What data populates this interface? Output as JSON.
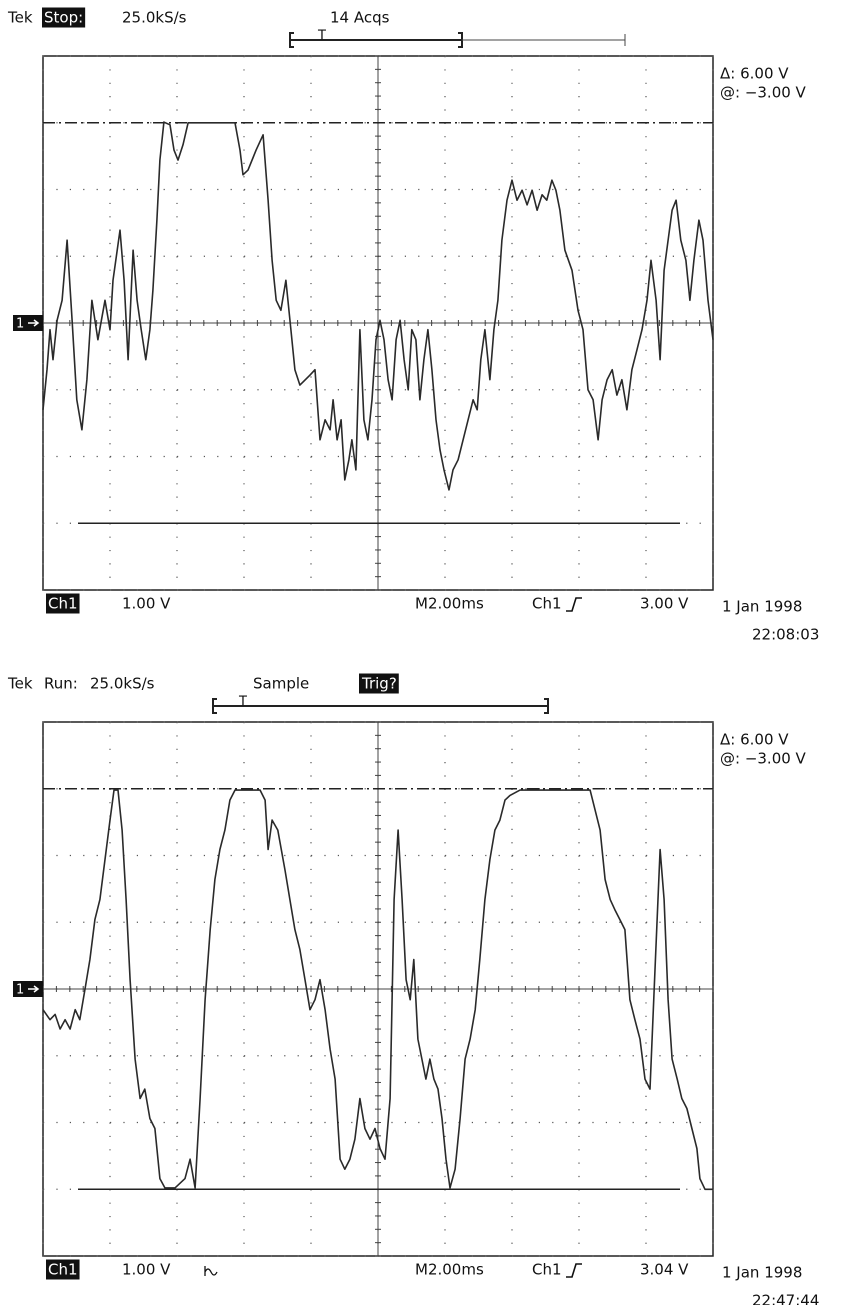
{
  "chart_data": [
    {
      "type": "line",
      "brand": "Tek",
      "status": "Stop:",
      "sample_rate": "25.0kS/s",
      "acquisition": "14 Acqs",
      "trigger_marker": "T",
      "channel_marker": "1",
      "cursor_delta": "Δ: 6.00 V",
      "cursor_position": "@: −3.00 V",
      "channel": "Ch1",
      "volts_per_div": "1.00 V",
      "timebase": "M2.00ms",
      "trigger_source": "Ch1",
      "trigger_level": "3.00 V",
      "date": "1 Jan 1998",
      "time": "22:08:03",
      "xlim": [
        0,
        20
      ],
      "ylim": [
        -4,
        4
      ],
      "xticks": [
        0,
        2,
        4,
        6,
        8,
        10,
        12,
        14,
        16,
        18,
        20
      ],
      "yticks": [
        -4,
        -3,
        -2,
        -1,
        0,
        1,
        2,
        3,
        4
      ],
      "grid": true,
      "cursors": [
        {
          "value": 3,
          "style": "dashed"
        },
        {
          "value": -3,
          "style": "solid"
        }
      ],
      "x": [
        0,
        0.12,
        0.21,
        0.3,
        0.42,
        0.57,
        0.72,
        0.87,
        1.01,
        1.16,
        1.31,
        1.46,
        1.64,
        1.85,
        2.0,
        2.09,
        2.3,
        2.42,
        2.54,
        2.69,
        2.81,
        2.93,
        3.07,
        3.19,
        3.28,
        3.4,
        3.49,
        3.61,
        3.79,
        3.91,
        4.03,
        4.18,
        4.33,
        5.73,
        5.88,
        5.97,
        6.12,
        6.36,
        6.57,
        6.72,
        6.84,
        6.96,
        7.1,
        7.25,
        7.4,
        7.52,
        7.67,
        7.97,
        8.12,
        8.27,
        8.42,
        8.57,
        8.66,
        8.78,
        8.9,
        9.01,
        9.13,
        9.22,
        9.34,
        9.46,
        9.58,
        9.7,
        9.82,
        9.94,
        10.06,
        10.18,
        10.3,
        10.42,
        10.54,
        10.66,
        10.78,
        10.9,
        11.01,
        11.13,
        11.25,
        11.37,
        11.49,
        11.61,
        11.73,
        11.85,
        11.97,
        12.12,
        12.24,
        12.39,
        12.54,
        12.69,
        12.84,
        12.96,
        13.07,
        13.19,
        13.34,
        13.46,
        13.58,
        13.7,
        13.85,
        14.0,
        14.15,
        14.3,
        14.45,
        14.6,
        14.75,
        14.9,
        15.04,
        15.19,
        15.31,
        15.43,
        15.58,
        15.79,
        15.97,
        16.12,
        16.27,
        16.42,
        16.57,
        16.69,
        16.84,
        16.99,
        17.13,
        17.28,
        17.43,
        17.58,
        17.73,
        17.88,
        18.03,
        18.15,
        18.3,
        18.42,
        18.54,
        18.66,
        18.78,
        18.9,
        19.04,
        19.19,
        19.31,
        19.43,
        19.58,
        19.7,
        19.85,
        20.0
      ],
      "series": [
        {
          "color": "#2a2a2a",
          "values": [
            -1.3,
            -0.7,
            -0.1,
            -0.55,
            0.04,
            0.34,
            1.24,
            0.04,
            -1.15,
            -1.6,
            -0.85,
            0.34,
            -0.25,
            0.34,
            -0.1,
            0.64,
            1.39,
            0.64,
            -0.55,
            1.09,
            0.34,
            -0.1,
            -0.55,
            -0.1,
            0.49,
            1.54,
            2.44,
            3.01,
            2.97,
            2.59,
            2.44,
            2.67,
            3.0,
            3.0,
            2.59,
            2.22,
            2.29,
            2.59,
            2.82,
            1.84,
            0.94,
            0.34,
            0.19,
            0.64,
            -0.1,
            -0.7,
            -0.93,
            -0.78,
            -0.7,
            -1.75,
            -1.45,
            -1.6,
            -1.15,
            -1.75,
            -1.45,
            -2.35,
            -2.05,
            -1.75,
            -2.2,
            -0.1,
            -1.45,
            -1.75,
            -1.15,
            -0.25,
            0.04,
            -0.25,
            -0.85,
            -1.15,
            -0.25,
            0.04,
            -0.55,
            -1.0,
            -0.1,
            -0.25,
            -1.15,
            -0.55,
            -0.1,
            -0.7,
            -1.45,
            -1.9,
            -2.2,
            -2.5,
            -2.2,
            -2.05,
            -1.75,
            -1.45,
            -1.15,
            -1.3,
            -0.55,
            -0.1,
            -0.85,
            -0.1,
            0.34,
            1.24,
            1.84,
            2.14,
            1.84,
            1.99,
            1.77,
            1.99,
            1.69,
            1.92,
            1.84,
            2.14,
            1.99,
            1.69,
            1.09,
            0.79,
            0.19,
            -0.1,
            -1.0,
            -1.15,
            -1.75,
            -1.15,
            -0.85,
            -0.7,
            -1.08,
            -0.85,
            -1.3,
            -0.7,
            -0.4,
            -0.1,
            0.34,
            0.94,
            0.34,
            -0.55,
            0.79,
            1.24,
            1.69,
            1.84,
            1.24,
            0.94,
            0.34,
            0.94,
            1.54,
            1.24,
            0.34,
            -0.25
          ]
        }
      ]
    },
    {
      "type": "line",
      "brand": "Tek",
      "status": "Run:",
      "sample_rate": "25.0kS/s",
      "acquisition": "Sample",
      "trigger_status": "Trig?",
      "trigger_marker": "T",
      "channel_marker": "1",
      "cursor_delta": "Δ: 6.00 V",
      "cursor_position": "@: −3.00 V",
      "channel": "Ch1",
      "volts_per_div": "1.00 V",
      "timebase": "M2.00ms",
      "trigger_source": "Ch1",
      "trigger_level": "3.04 V",
      "date": "1 Jan 1998",
      "time": "22:47:44",
      "xlim": [
        0,
        20
      ],
      "ylim": [
        -4,
        4
      ],
      "xticks": [
        0,
        2,
        4,
        6,
        8,
        10,
        12,
        14,
        16,
        18,
        20
      ],
      "yticks": [
        -4,
        -3,
        -2,
        -1,
        0,
        1,
        2,
        3,
        4
      ],
      "grid": true,
      "cursors": [
        {
          "value": 3,
          "style": "dashed"
        },
        {
          "value": -3,
          "style": "solid"
        }
      ],
      "x": [
        0,
        0.21,
        0.36,
        0.51,
        0.66,
        0.81,
        0.96,
        1.1,
        1.25,
        1.4,
        1.55,
        1.7,
        1.85,
        2.0,
        2.12,
        2.24,
        2.36,
        2.48,
        2.6,
        2.75,
        2.9,
        3.04,
        3.19,
        3.34,
        3.49,
        3.64,
        3.94,
        4.24,
        4.39,
        4.54,
        4.69,
        4.84,
        4.99,
        5.13,
        5.28,
        5.43,
        5.58,
        5.73,
        6.48,
        6.63,
        6.72,
        6.84,
        7.01,
        7.22,
        7.37,
        7.52,
        7.67,
        7.82,
        7.97,
        8.12,
        8.27,
        8.42,
        8.57,
        8.72,
        8.87,
        9.01,
        9.16,
        9.31,
        9.46,
        9.61,
        9.76,
        9.91,
        10.06,
        10.21,
        10.36,
        10.48,
        10.6,
        10.72,
        10.84,
        10.96,
        11.07,
        11.19,
        11.31,
        11.43,
        11.55,
        11.67,
        11.79,
        11.91,
        12.03,
        12.15,
        12.3,
        12.45,
        12.6,
        12.75,
        12.9,
        13.04,
        13.19,
        13.34,
        13.49,
        13.64,
        13.79,
        13.94,
        14.24,
        16.33,
        16.63,
        16.78,
        16.93,
        17.07,
        17.22,
        17.37,
        17.52,
        17.67,
        17.82,
        17.97,
        18.12,
        18.27,
        18.42,
        18.54,
        18.66,
        18.78,
        18.93,
        19.07,
        19.22,
        19.37,
        19.52,
        19.61,
        19.76,
        20.0
      ],
      "series": [
        {
          "color": "#2a2a2a",
          "values": [
            -0.31,
            -0.46,
            -0.38,
            -0.6,
            -0.46,
            -0.6,
            -0.31,
            -0.46,
            -0.01,
            0.44,
            1.04,
            1.34,
            1.94,
            2.53,
            2.98,
            2.98,
            2.38,
            1.34,
            0.14,
            -1.05,
            -1.64,
            -1.5,
            -1.94,
            -2.09,
            -2.84,
            -2.98,
            -2.98,
            -2.84,
            -2.55,
            -2.98,
            -1.64,
            -0.16,
            0.89,
            1.64,
            2.09,
            2.38,
            2.83,
            2.98,
            2.98,
            2.83,
            2.09,
            2.53,
            2.38,
            1.79,
            1.34,
            0.89,
            0.59,
            0.14,
            -0.31,
            -0.16,
            0.14,
            -0.31,
            -0.9,
            -1.35,
            -2.55,
            -2.7,
            -2.55,
            -2.25,
            -1.64,
            -2.09,
            -2.25,
            -2.09,
            -2.39,
            -2.55,
            -1.64,
            1.34,
            2.38,
            1.34,
            0.14,
            -0.16,
            0.44,
            -0.75,
            -1.05,
            -1.35,
            -1.05,
            -1.35,
            -1.5,
            -1.94,
            -2.55,
            -2.98,
            -2.7,
            -1.94,
            -1.05,
            -0.75,
            -0.31,
            0.44,
            1.34,
            1.94,
            2.38,
            2.53,
            2.83,
            2.9,
            2.98,
            2.98,
            2.38,
            1.64,
            1.34,
            1.19,
            1.04,
            0.89,
            -0.16,
            -0.46,
            -0.75,
            -1.35,
            -1.5,
            0.29,
            2.09,
            1.34,
            -0.16,
            -1.05,
            -1.35,
            -1.64,
            -1.79,
            -2.09,
            -2.39,
            -2.84,
            -3.0,
            -3.0
          ]
        }
      ]
    }
  ]
}
